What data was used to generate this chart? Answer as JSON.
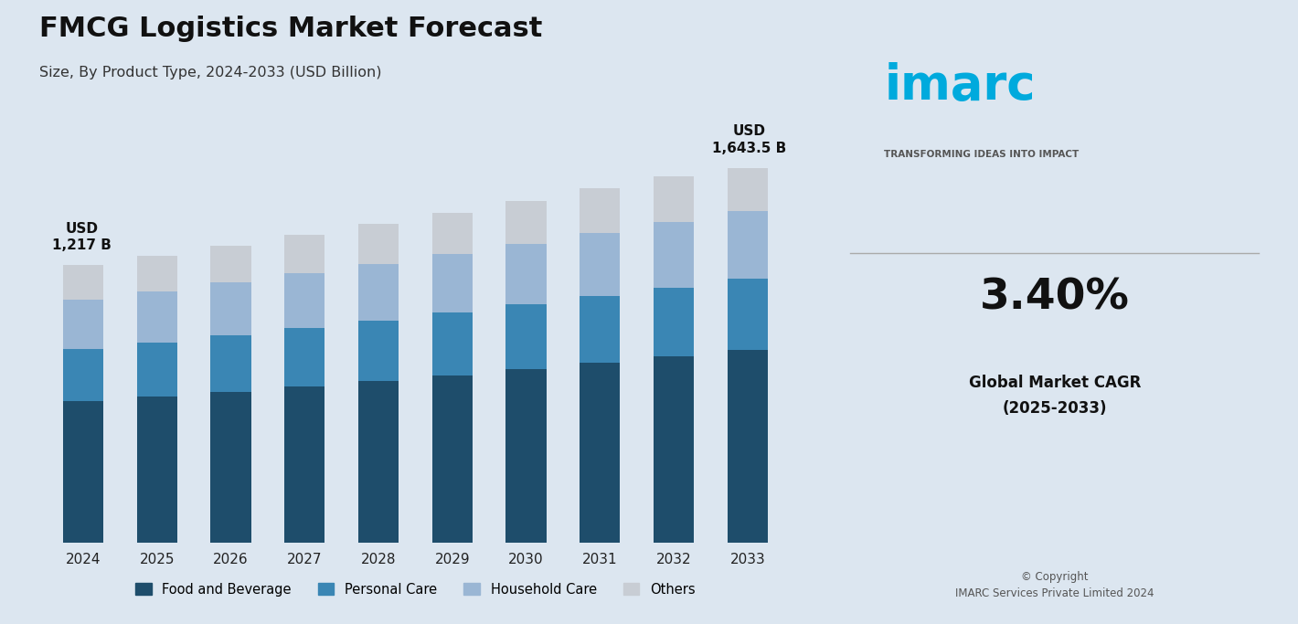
{
  "title": "FMCG Logistics Market Forecast",
  "subtitle": "Size, By Product Type, 2024-2033 (USD Billion)",
  "years": [
    2024,
    2025,
    2026,
    2027,
    2028,
    2029,
    2030,
    2031,
    2032,
    2033
  ],
  "food_beverage": [
    620,
    641,
    663,
    686,
    710,
    735,
    761,
    788,
    816,
    845
  ],
  "personal_care": [
    230,
    238,
    246,
    255,
    264,
    273,
    283,
    293,
    303,
    314
  ],
  "household_care": [
    215,
    223,
    231,
    239,
    248,
    257,
    266,
    276,
    286,
    296
  ],
  "others": [
    152,
    157,
    163,
    169,
    175,
    181,
    188,
    195,
    202,
    188
  ],
  "total_2024": 1217,
  "total_2033": 1643.5,
  "cagr": "3.40%",
  "cagr_label": "Global Market CAGR\n(2025-2033)",
  "colors": {
    "food_beverage": "#1e4d6b",
    "personal_care": "#3a86b4",
    "household_care": "#9ab6d4",
    "others": "#c8cdd4",
    "chart_bg": "#dce6f0",
    "right_bg": "#eef2f6"
  },
  "legend_labels": [
    "Food and Beverage",
    "Personal Care",
    "Household Care",
    "Others"
  ],
  "annotation_2024": "USD\n1,217 B",
  "annotation_2033": "USD\n1,643.5 B",
  "copyright_text": "© Copyright\nIMARC Services Private Limited 2024"
}
